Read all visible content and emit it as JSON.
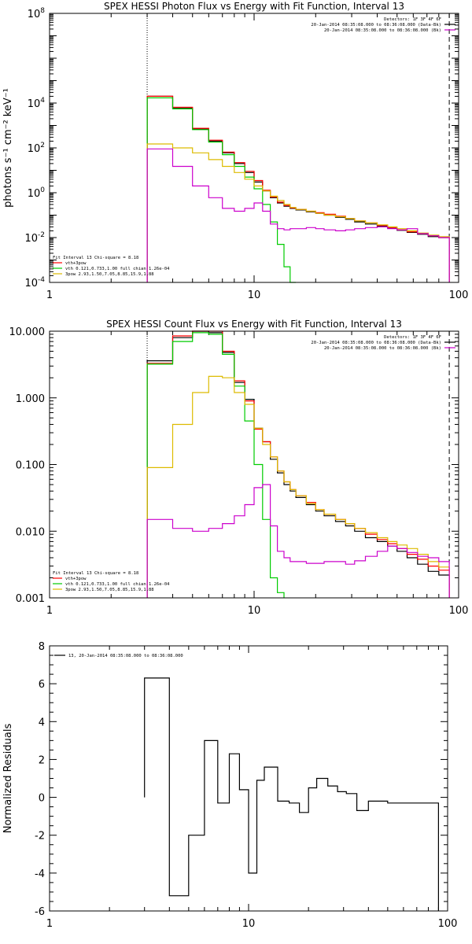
{
  "chart_data": [
    {
      "type": "line",
      "title": "SPEX HESSI Photon Flux vs Energy with Fit Function, Interval 13",
      "ylabel": "photons s⁻¹ cm⁻² keV⁻¹",
      "xscale": "log",
      "yscale": "log",
      "xlim": [
        1,
        100
      ],
      "ylim": [
        0.0001,
        100000000
      ],
      "xticks": [
        "1",
        "10",
        "100"
      ],
      "yticks": [
        {
          "v": 0.0001,
          "m": "10",
          "e": "-4"
        },
        {
          "v": 0.01,
          "m": "10",
          "e": "-2"
        },
        {
          "v": 1,
          "m": "10",
          "e": "0"
        },
        {
          "v": 100,
          "m": "10",
          "e": "2"
        },
        {
          "v": 10000,
          "m": "10",
          "e": "4"
        },
        {
          "v": 100000000,
          "m": "10",
          "e": "8"
        }
      ],
      "vlines_dotted": [
        3
      ],
      "vlines_dashed": [
        90
      ],
      "legend_tr": [
        {
          "text": "Detectors: 1F 3F 4F 6F",
          "color": ""
        },
        {
          "text": "20-Jan-2014 08:35:08.000 to 08:36:08.000 (Data-Bk)",
          "color": "#000000"
        },
        {
          "text": "20-Jan-2014 08:35:08.000 to 08:36:08.000 (Bk)",
          "color": "#cc00cc"
        }
      ],
      "legend_bl": [
        {
          "text": "Fit Interval 13    Chi-square = 8.18",
          "color": ""
        },
        {
          "text": "vth+3pow",
          "color": "#ff0000"
        },
        {
          "text": "vth 0.121,0.733,1.00  full chian 1.26e-04",
          "color": "#00cc00"
        },
        {
          "text": "3pow 2.93,1.50,7.05,8.85,15.9,1.88",
          "color": "#ddbb00"
        }
      ],
      "edges": [
        3,
        3.5,
        4,
        4.5,
        5,
        5.5,
        6,
        6.5,
        7,
        7.5,
        8,
        8.5,
        9,
        9.5,
        10,
        11,
        12,
        13,
        14,
        15,
        16,
        18,
        20,
        22,
        25,
        28,
        31,
        35,
        40,
        45,
        50,
        56,
        63,
        71,
        80,
        90
      ],
      "series": [
        {
          "name": "",
          "color": "#000000",
          "values": [
            20000,
            20000,
            6000,
            6000,
            700,
            700,
            200,
            200,
            60,
            60,
            20,
            20,
            8,
            8,
            3,
            1.2,
            0.6,
            0.35,
            0.25,
            0.2,
            0.17,
            0.14,
            0.12,
            0.1,
            0.08,
            0.065,
            0.05,
            0.04,
            0.032,
            0.026,
            0.021,
            0.017,
            0.014,
            0.011,
            0.01
          ]
        },
        {
          "name": "",
          "color": "#ff0000",
          "values": [
            20000,
            20000,
            6500,
            6500,
            750,
            750,
            220,
            220,
            65,
            65,
            22,
            22,
            9,
            9,
            3.5,
            1.3,
            0.65,
            0.38,
            0.27,
            0.21,
            0.18,
            0.15,
            0.13,
            0.11,
            0.09,
            0.07,
            0.055,
            0.045,
            0.035,
            0.028,
            0.022,
            0.018,
            0.015,
            0.012,
            0.01
          ]
        },
        {
          "name": "",
          "color": "#00cc00",
          "values": [
            17000,
            17000,
            5500,
            5500,
            650,
            650,
            180,
            180,
            50,
            50,
            15,
            15,
            5,
            5,
            1.5,
            0.3,
            0.05,
            0.005,
            0.0005,
            0.0001,
            null,
            null,
            null,
            null,
            null,
            null,
            null,
            null,
            null,
            null,
            null,
            null,
            null,
            null,
            null
          ]
        },
        {
          "name": "",
          "color": "#ddbb00",
          "values": [
            150,
            150,
            100,
            100,
            60,
            60,
            30,
            30,
            15,
            15,
            8,
            8,
            4,
            4,
            2,
            1.2,
            0.7,
            0.45,
            0.3,
            0.22,
            0.18,
            0.15,
            0.12,
            0.1,
            0.085,
            0.07,
            0.055,
            0.045,
            0.037,
            0.03,
            0.025,
            0.02,
            0.016,
            0.013,
            0.011
          ]
        },
        {
          "name": "",
          "color": "#cc00cc",
          "values": [
            90,
            90,
            15,
            15,
            2,
            2,
            0.6,
            0.6,
            0.2,
            0.2,
            0.15,
            0.15,
            0.2,
            0.2,
            0.35,
            0.15,
            0.04,
            0.025,
            0.022,
            0.025,
            0.025,
            0.028,
            0.025,
            0.022,
            0.02,
            0.022,
            0.025,
            0.028,
            0.03,
            0.025,
            0.022,
            0.025,
            0.015,
            0.012,
            0.01
          ]
        }
      ]
    },
    {
      "type": "line",
      "title": "SPEX HESSI Count Flux vs Energy with Fit Function, Interval 13",
      "ylabel": "",
      "xscale": "log",
      "yscale": "log",
      "xlim": [
        1,
        100
      ],
      "ylim": [
        0.001,
        10
      ],
      "xticks": [
        "1",
        "10",
        "100"
      ],
      "yticks": [
        {
          "v": 0.001,
          "m": "0.001",
          "e": ""
        },
        {
          "v": 0.01,
          "m": "0.010",
          "e": ""
        },
        {
          "v": 0.1,
          "m": "0.100",
          "e": ""
        },
        {
          "v": 1,
          "m": "1.000",
          "e": ""
        },
        {
          "v": 10,
          "m": "10.000",
          "e": ""
        }
      ],
      "vlines_dotted": [
        3
      ],
      "vlines_dashed": [
        90
      ],
      "legend_tr": [
        {
          "text": "Detectors: 1F 3F 4F 6F",
          "color": ""
        },
        {
          "text": "20-Jan-2014 08:35:08.000 to 08:36:08.000 (Data-Bk)",
          "color": "#000000"
        },
        {
          "text": "20-Jan-2014 08:35:08.000 to 08:36:08.000 (Bk)",
          "color": "#cc00cc"
        }
      ],
      "legend_bl": [
        {
          "text": "Fit Interval 13    Chi-square = 8.18",
          "color": ""
        },
        {
          "text": "vth+3pow",
          "color": "#ff0000"
        },
        {
          "text": "vth 0.121,0.733,1.00  full chian 1.26e-04",
          "color": "#00cc00"
        },
        {
          "text": "3pow 2.93,1.50,7.05,8.85,15.9,1.88",
          "color": "#ddbb00"
        }
      ],
      "edges": [
        3,
        3.5,
        4,
        4.5,
        5,
        5.5,
        6,
        6.5,
        7,
        7.5,
        8,
        8.5,
        9,
        9.5,
        10,
        11,
        12,
        13,
        14,
        15,
        16,
        18,
        20,
        22,
        25,
        28,
        31,
        35,
        40,
        45,
        50,
        56,
        63,
        71,
        80,
        90
      ],
      "series": [
        {
          "name": "",
          "color": "#000000",
          "values": [
            3.6,
            3.6,
            8,
            8,
            10,
            10,
            9.5,
            9.5,
            4.8,
            4.8,
            1.7,
            1.7,
            0.95,
            0.95,
            0.35,
            0.22,
            0.12,
            0.075,
            0.05,
            0.04,
            0.032,
            0.025,
            0.02,
            0.017,
            0.014,
            0.012,
            0.01,
            0.008,
            0.007,
            0.006,
            0.005,
            0.004,
            0.0032,
            0.0025,
            0.0022
          ]
        },
        {
          "name": "",
          "color": "#ff0000",
          "values": [
            3.3,
            3.3,
            8.5,
            8.5,
            10.5,
            10.5,
            10,
            10,
            5,
            5,
            1.8,
            1.8,
            0.9,
            0.9,
            0.34,
            0.22,
            0.13,
            0.08,
            0.055,
            0.042,
            0.034,
            0.027,
            0.021,
            0.018,
            0.015,
            0.013,
            0.011,
            0.009,
            0.0075,
            0.0065,
            0.0055,
            0.0045,
            0.0038,
            0.003,
            0.0026
          ]
        },
        {
          "name": "",
          "color": "#00cc00",
          "values": [
            3.2,
            3.2,
            7,
            7,
            9.5,
            9.5,
            9,
            9,
            4.5,
            4.5,
            1.5,
            1.5,
            0.45,
            0.45,
            0.1,
            0.015,
            0.002,
            0.0012,
            null,
            null,
            null,
            null,
            null,
            null,
            null,
            null,
            null,
            null,
            null,
            null,
            null,
            null,
            null,
            null,
            null
          ]
        },
        {
          "name": "",
          "color": "#ddbb00",
          "values": [
            0.09,
            0.09,
            0.4,
            0.4,
            1.2,
            1.2,
            2.1,
            2.1,
            2,
            2,
            1.2,
            1.2,
            0.8,
            0.8,
            0.35,
            0.2,
            0.13,
            0.08,
            0.055,
            0.042,
            0.034,
            0.026,
            0.021,
            0.018,
            0.015,
            0.013,
            0.011,
            0.0095,
            0.008,
            0.007,
            0.0062,
            0.0055,
            0.0045,
            0.0035,
            0.0029
          ]
        },
        {
          "name": "",
          "color": "#cc00cc",
          "values": [
            0.015,
            0.015,
            0.011,
            0.011,
            0.01,
            0.01,
            0.011,
            0.011,
            0.013,
            0.013,
            0.017,
            0.017,
            0.025,
            0.025,
            0.045,
            0.05,
            0.012,
            0.005,
            0.004,
            0.0035,
            0.0035,
            0.0033,
            0.0033,
            0.0035,
            0.0035,
            0.0032,
            0.0036,
            0.0042,
            0.005,
            0.006,
            0.0055,
            0.0048,
            0.0042,
            0.004,
            0.0035
          ]
        }
      ]
    },
    {
      "type": "line",
      "title": "",
      "ylabel": "Normalized Residuals",
      "xscale": "log",
      "yscale": "linear",
      "xlim": [
        1,
        100
      ],
      "ylim": [
        -6,
        8
      ],
      "xticks": [
        "1",
        "10",
        "100"
      ],
      "yticks": [
        {
          "v": -6,
          "m": "-6",
          "e": ""
        },
        {
          "v": -4,
          "m": "-4",
          "e": ""
        },
        {
          "v": -2,
          "m": "-2",
          "e": ""
        },
        {
          "v": 0,
          "m": "0",
          "e": ""
        },
        {
          "v": 2,
          "m": "2",
          "e": ""
        },
        {
          "v": 4,
          "m": "4",
          "e": ""
        },
        {
          "v": 6,
          "m": "6",
          "e": ""
        },
        {
          "v": 8,
          "m": "8",
          "e": ""
        }
      ],
      "legend_tl": [
        {
          "text": "13, 20-Jan-2014 08:35:08.000 to 08:36:08.000",
          "color": "#000000"
        }
      ],
      "edges": [
        3,
        4,
        5,
        6,
        7,
        8,
        9,
        10,
        11,
        12,
        14,
        16,
        18,
        20,
        22,
        25,
        28,
        31,
        35,
        40,
        45,
        50,
        56,
        63,
        71,
        80,
        90
      ],
      "series": [
        {
          "name": "",
          "color": "#000000",
          "values": [
            6.3,
            -5.2,
            -2,
            3,
            -0.3,
            2.3,
            0.4,
            -4,
            0.9,
            1.6,
            -0.2,
            -0.3,
            -0.8,
            0.5,
            1,
            0.6,
            0.3,
            0.2,
            -0.7,
            -0.2,
            -0.2,
            -0.3,
            -0.3,
            -0.3,
            -0.3,
            -0.3
          ]
        }
      ]
    }
  ]
}
